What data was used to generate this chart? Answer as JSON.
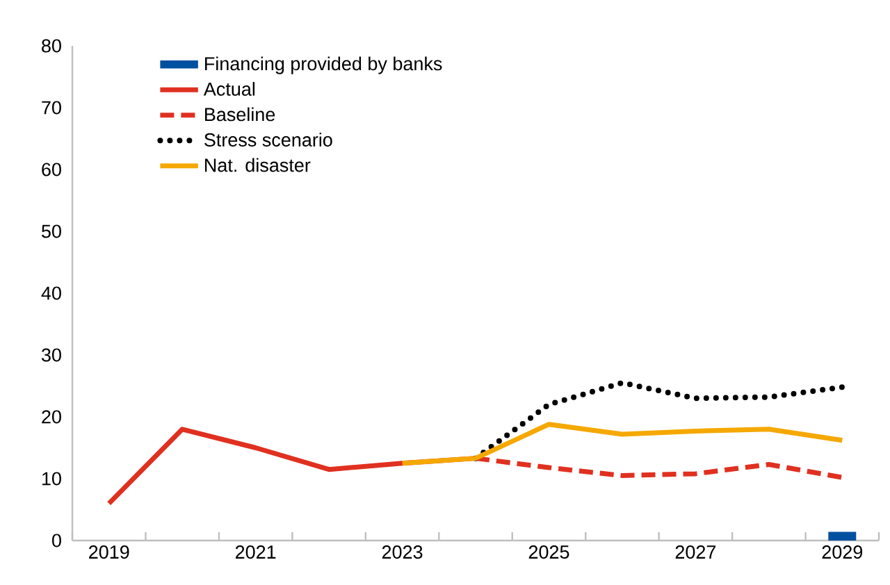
{
  "chart_data": {
    "type": "line",
    "categories": [
      "2019",
      null,
      "2021",
      null,
      "2023",
      null,
      "2025",
      null,
      "2027",
      null,
      "2029"
    ],
    "ylim": [
      0,
      80
    ],
    "yticks": [
      0,
      10,
      20,
      30,
      40,
      50,
      60,
      70,
      80
    ],
    "legend": "top left",
    "marker": "none",
    "series": [
      {
        "name": "Financing provided by banks",
        "type": "bar",
        "color": "#0050a0",
        "values": [
          null,
          null,
          null,
          null,
          null,
          null,
          null,
          null,
          null,
          null,
          1.4
        ]
      },
      {
        "name": "Actual",
        "line_style": "solid",
        "color": "#e03020",
        "values": [
          6,
          18,
          15,
          11.5,
          12.5,
          13.3,
          null,
          null,
          null,
          null,
          null
        ]
      },
      {
        "name": "Baseline",
        "line_style": "dashed",
        "color": "#e03020",
        "values": [
          null,
          null,
          null,
          null,
          null,
          13.3,
          11.8,
          10.5,
          10.8,
          12.3,
          10.2
        ]
      },
      {
        "name": "Stress scenario",
        "line_style": "dotted",
        "color": "#000000",
        "values": [
          null,
          null,
          null,
          null,
          null,
          13.3,
          22,
          25.5,
          23,
          23.2,
          24.8
        ]
      },
      {
        "name": "Nat. disaster",
        "line_style": "solid",
        "color": "#f5a800",
        "values": [
          null,
          null,
          null,
          null,
          12.5,
          13.3,
          18.8,
          17.2,
          17.7,
          18,
          16.2
        ]
      }
    ]
  }
}
